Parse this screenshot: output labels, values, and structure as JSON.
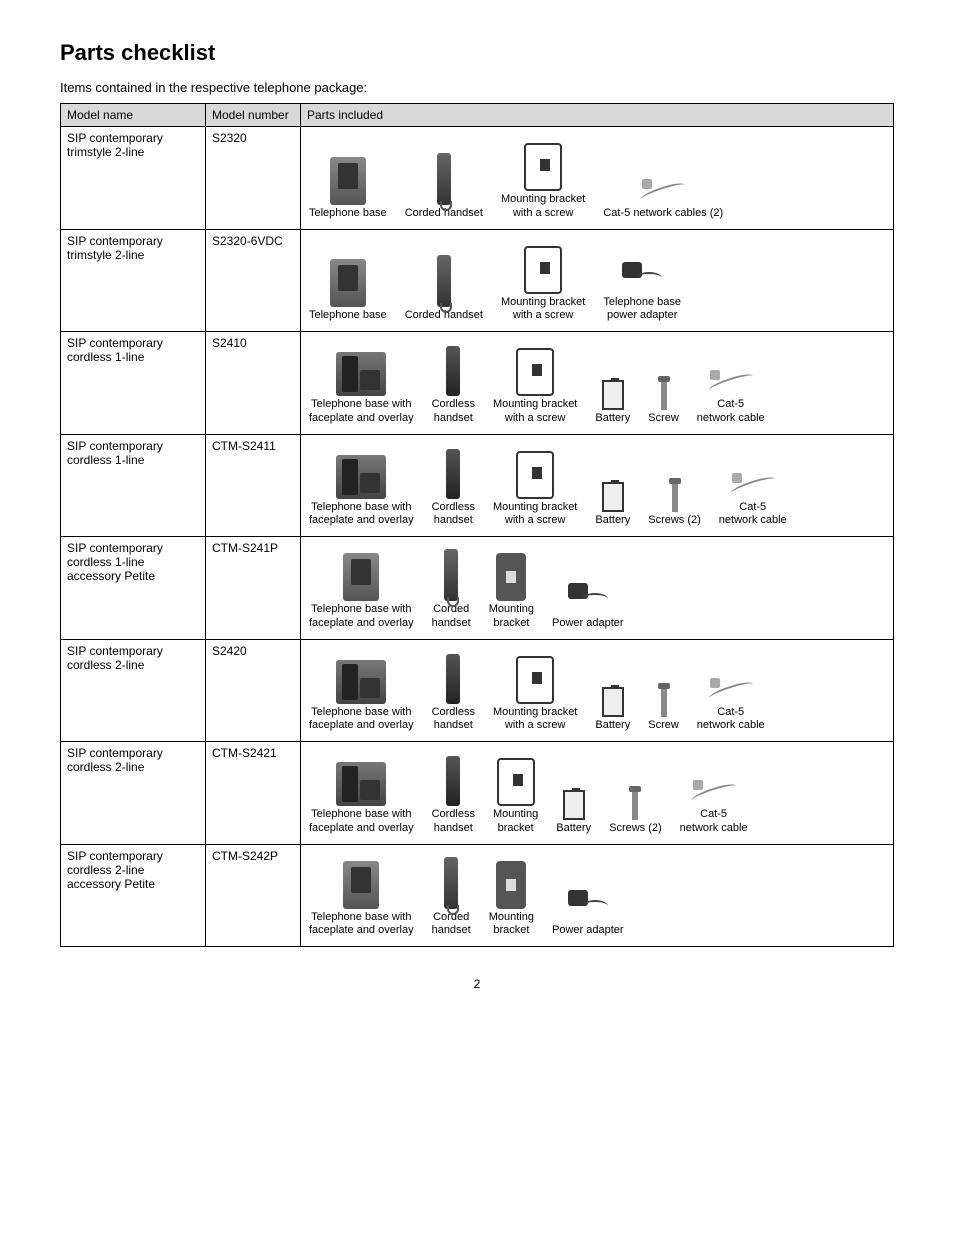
{
  "page": {
    "title": "Parts checklist",
    "subtitle": "Items contained in the respective telephone package:",
    "number": "2"
  },
  "table": {
    "headers": {
      "model_name": "Model name",
      "model_number": "Model number",
      "parts_included": "Parts included"
    },
    "rows": [
      {
        "model_name": "SIP contemporary trimstyle 2-line",
        "model_number": "S2320",
        "parts": [
          {
            "icon": "base",
            "label": "Telephone base"
          },
          {
            "icon": "handset",
            "label": "Corded handset"
          },
          {
            "icon": "bracket",
            "label": "Mounting bracket\nwith a screw"
          },
          {
            "icon": "cable",
            "label": "Cat-5 network cables (2)"
          }
        ]
      },
      {
        "model_name": "SIP contemporary trimstyle 2-line",
        "model_number": "S2320-6VDC",
        "parts": [
          {
            "icon": "base",
            "label": "Telephone base"
          },
          {
            "icon": "handset",
            "label": "Corded handset"
          },
          {
            "icon": "bracket",
            "label": "Mounting bracket\nwith a screw"
          },
          {
            "icon": "adapter",
            "label": "Telephone base\npower adapter"
          }
        ]
      },
      {
        "model_name": "SIP contemporary cordless 1-line",
        "model_number": "S2410",
        "parts": [
          {
            "icon": "base2",
            "label": "Telephone base with\nfaceplate and overlay"
          },
          {
            "icon": "cordless",
            "label": "Cordless\nhandset"
          },
          {
            "icon": "bracket",
            "label": "Mounting bracket\nwith a screw"
          },
          {
            "icon": "battery",
            "label": "Battery"
          },
          {
            "icon": "screw",
            "label": "Screw"
          },
          {
            "icon": "cable",
            "label": "Cat-5\nnetwork cable"
          }
        ]
      },
      {
        "model_name": "SIP contemporary cordless 1-line",
        "model_number": "CTM-S2411",
        "parts": [
          {
            "icon": "base2",
            "label": "Telephone base with\nfaceplate and overlay"
          },
          {
            "icon": "cordless",
            "label": "Cordless\nhandset"
          },
          {
            "icon": "bracket",
            "label": "Mounting bracket\nwith a screw"
          },
          {
            "icon": "battery",
            "label": "Battery"
          },
          {
            "icon": "screw",
            "label": "Screws (2)"
          },
          {
            "icon": "cable",
            "label": "Cat-5\nnetwork cable"
          }
        ]
      },
      {
        "model_name": "SIP contemporary cordless 1-line accessory Petite",
        "model_number": "CTM-S241P",
        "parts": [
          {
            "icon": "base",
            "label": "Telephone base with\nfaceplate and overlay"
          },
          {
            "icon": "handset",
            "label": "Corded\nhandset"
          },
          {
            "icon": "bracket2",
            "label": "Mounting\nbracket"
          },
          {
            "icon": "adapter",
            "label": "Power adapter"
          }
        ]
      },
      {
        "model_name": "SIP contemporary cordless 2-line",
        "model_number": "S2420",
        "parts": [
          {
            "icon": "base2",
            "label": "Telephone base with\nfaceplate and overlay"
          },
          {
            "icon": "cordless",
            "label": "Cordless\nhandset"
          },
          {
            "icon": "bracket",
            "label": "Mounting bracket\nwith a screw"
          },
          {
            "icon": "battery",
            "label": "Battery"
          },
          {
            "icon": "screw",
            "label": "Screw"
          },
          {
            "icon": "cable",
            "label": "Cat-5\nnetwork cable"
          }
        ]
      },
      {
        "model_name": "SIP contemporary cordless 2-line",
        "model_number": "CTM-S2421",
        "parts": [
          {
            "icon": "base2",
            "label": "Telephone base with\nfaceplate and overlay"
          },
          {
            "icon": "cordless",
            "label": "Cordless\nhandset"
          },
          {
            "icon": "bracket",
            "label": "Mounting\nbracket"
          },
          {
            "icon": "battery",
            "label": "Battery"
          },
          {
            "icon": "screw",
            "label": "Screws (2)"
          },
          {
            "icon": "cable",
            "label": "Cat-5\nnetwork cable"
          }
        ]
      },
      {
        "model_name": "SIP contemporary cordless 2-line accessory Petite",
        "model_number": "CTM-S242P",
        "parts": [
          {
            "icon": "base",
            "label": "Telephone base with\nfaceplate and overlay"
          },
          {
            "icon": "handset",
            "label": "Corded\nhandset"
          },
          {
            "icon": "bracket2",
            "label": "Mounting\nbracket"
          },
          {
            "icon": "adapter",
            "label": "Power adapter"
          }
        ]
      }
    ]
  },
  "icon_map": {
    "base": "ic-base",
    "base2": "ic-base2",
    "handset": "ic-handset",
    "cordless": "ic-cordless",
    "bracket": "ic-bracket",
    "bracket2": "ic-bracket2",
    "cable": "ic-cable",
    "adapter": "ic-adapter",
    "battery": "ic-battery",
    "screw": "ic-screw"
  }
}
